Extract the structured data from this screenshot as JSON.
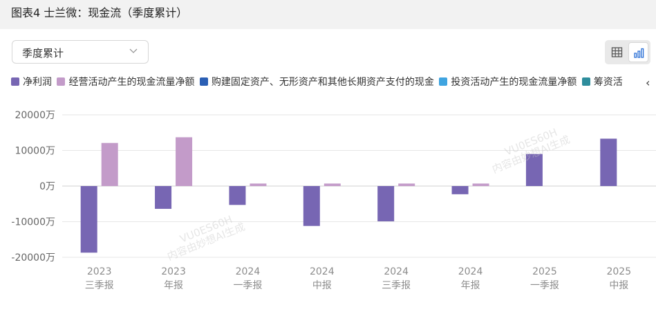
{
  "header": {
    "title": "图表4 士兰微：现金流（季度累计）"
  },
  "period_select": {
    "value": "季度累计",
    "icon": "chevron-down-icon"
  },
  "view_toggle": {
    "table_icon": "table-icon",
    "chart_icon": "bar-chart-icon",
    "active": "chart"
  },
  "legend": {
    "items": [
      {
        "label": "净利润",
        "color": "#7766b3"
      },
      {
        "label": "经营活动产生的现金流量净额",
        "color": "#c39bc9"
      },
      {
        "label": "购建固定资产、无形资产和其他长期资产支付的现金",
        "color": "#2b5fb4"
      },
      {
        "label": "投资活动产生的现金流量净额",
        "color": "#3fa4e0"
      },
      {
        "label": "筹资活",
        "color": "#2e8d9c"
      }
    ],
    "more_icon": "chevron-left-icon"
  },
  "watermark": [
    "VU0ES60H",
    "内容由妙想AI生成"
  ],
  "chart_data": {
    "type": "bar",
    "categories": [
      [
        "2023",
        "三季报"
      ],
      [
        "2023",
        "年报"
      ],
      [
        "2024",
        "一季报"
      ],
      [
        "2024",
        "中报"
      ],
      [
        "2024",
        "三季报"
      ],
      [
        "2024",
        "年报"
      ],
      [
        "2025",
        "一季报"
      ],
      [
        "2025",
        "中报"
      ]
    ],
    "series": [
      {
        "name": "净利润",
        "color": "#7766b3",
        "values": [
          -18700,
          -6400,
          -5300,
          -11200,
          -9900,
          -2300,
          9000,
          13300
        ]
      },
      {
        "name": "经营活动产生的现金流量净额",
        "color": "#c39bc9",
        "values": [
          12100,
          13700,
          700,
          700,
          700,
          700,
          null,
          null
        ]
      }
    ],
    "y_ticks": [
      "20000万",
      "10000万",
      "0万",
      "-10000万",
      "-20000万"
    ],
    "ylim": [
      -20000,
      20000
    ],
    "grid": true
  }
}
